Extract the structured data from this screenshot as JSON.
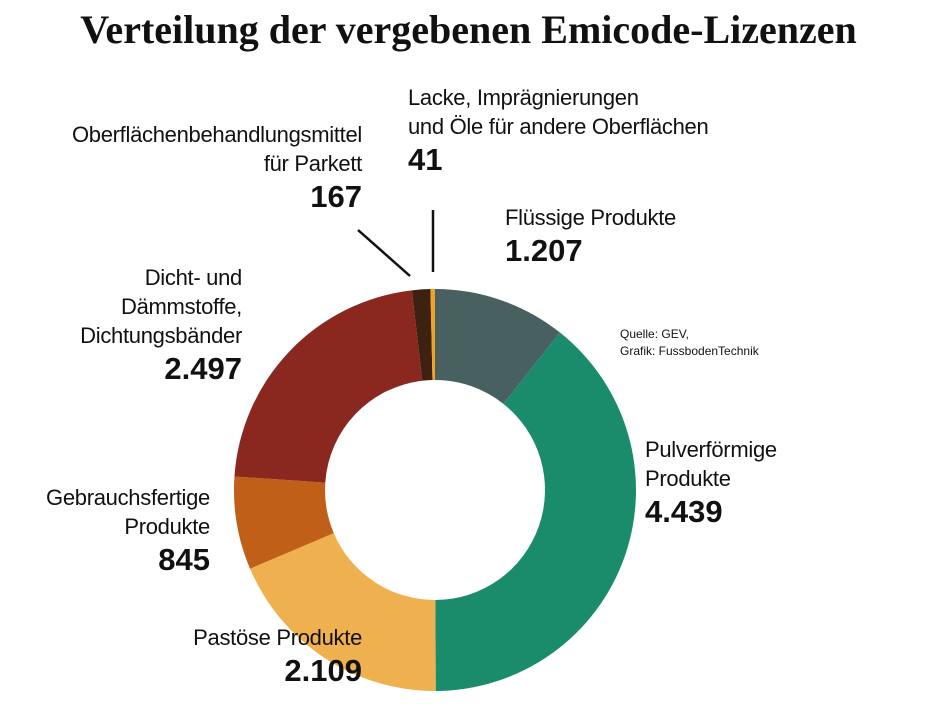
{
  "chart_data": {
    "type": "pie",
    "donut": true,
    "title": "Verteilung der vergebenen Emicode-Lizenzen",
    "source": "Quelle: GEV,\nGrafik: FussbodenTechnik",
    "categories": [
      "Flüssige Produkte",
      "Pulverförmige\nProdukte",
      "Pastöse Produkte",
      "Gebrauchsfertige\nProdukte",
      "Dicht- und\nDämmstoffe,\nDichtungsbänder",
      "Oberflächenbehandlungsmittel\nfür Parkett",
      "Lacke, Imprägnierungen\nund Öle für andere Oberflächen"
    ],
    "values": [
      1207,
      4439,
      2109,
      845,
      2497,
      167,
      41
    ],
    "value_labels": [
      "1.207",
      "4.439",
      "2.109",
      "845",
      "2.497",
      "167",
      "41"
    ],
    "colors": [
      "#48605f",
      "#1a8c6c",
      "#efb04f",
      "#c05f17",
      "#8a2820",
      "#3e2211",
      "#f2a324"
    ]
  }
}
